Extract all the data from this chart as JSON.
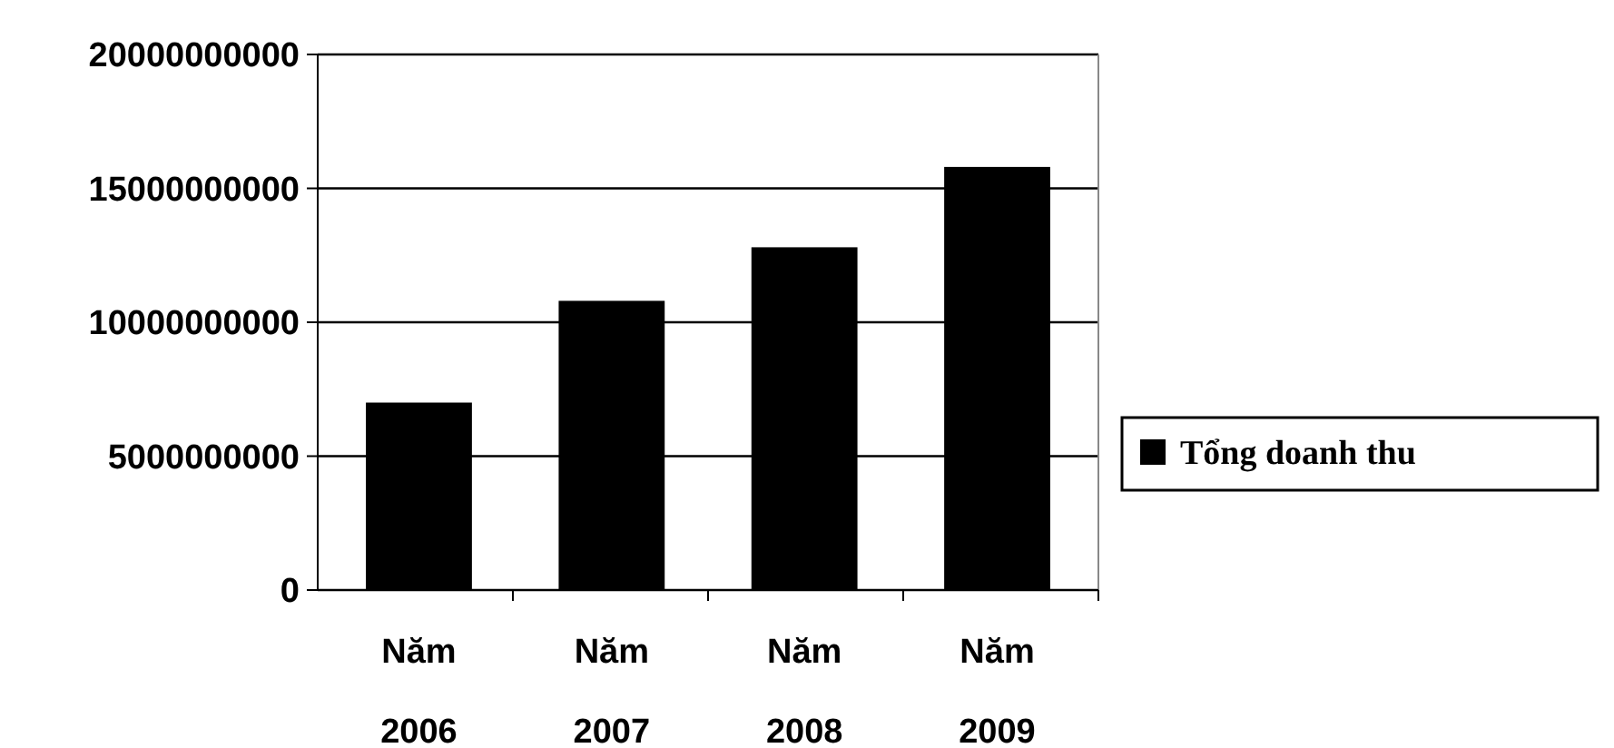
{
  "chart_data": {
    "type": "bar",
    "categories": [
      "Năm 2006",
      "Năm 2007",
      "Năm 2008",
      "Năm 2009"
    ],
    "series": [
      {
        "name": "Tổng doanh thu",
        "color": "#000000",
        "values": [
          7000000000,
          10800000000,
          12800000000,
          15800000000
        ]
      }
    ],
    "ylim": [
      0,
      20000000000
    ],
    "yticks": [
      0,
      5000000000,
      10000000000,
      15000000000,
      20000000000
    ],
    "grid": "y",
    "legend": "right"
  }
}
